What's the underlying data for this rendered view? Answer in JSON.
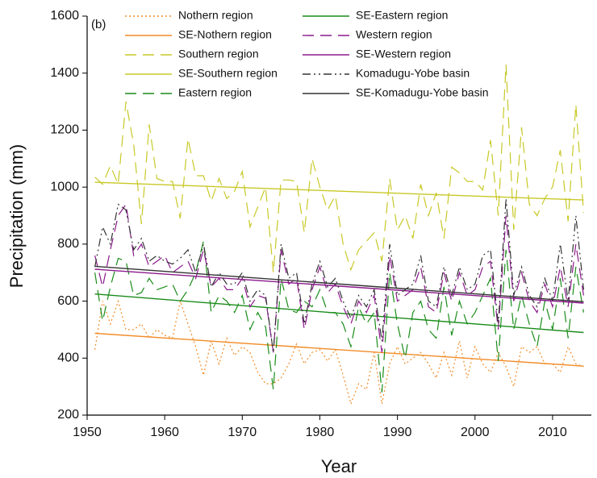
{
  "chart_data": {
    "type": "line",
    "panel_label": "(b)",
    "x_label": "Year",
    "y_label": "Precipitation (mm)",
    "xlim": [
      1950,
      2015
    ],
    "xticks": [
      1950,
      1960,
      1970,
      1980,
      1990,
      2000,
      2010
    ],
    "ylim": [
      200,
      1600
    ],
    "yticks": [
      200,
      400,
      600,
      800,
      1000,
      1200,
      1400,
      1600
    ],
    "x": [
      1951,
      1952,
      1953,
      1954,
      1955,
      1956,
      1957,
      1958,
      1959,
      1960,
      1961,
      1962,
      1963,
      1964,
      1965,
      1966,
      1967,
      1968,
      1969,
      1970,
      1971,
      1972,
      1973,
      1974,
      1975,
      1976,
      1977,
      1978,
      1979,
      1980,
      1981,
      1982,
      1983,
      1984,
      1985,
      1986,
      1987,
      1988,
      1989,
      1990,
      1991,
      1992,
      1993,
      1994,
      1995,
      1996,
      1997,
      1998,
      1999,
      2000,
      2001,
      2002,
      2003,
      2004,
      2005,
      2006,
      2007,
      2008,
      2009,
      2010,
      2011,
      2012,
      2013,
      2014
    ],
    "series": [
      {
        "name": "Nothern region",
        "color": "#f28c28",
        "dash": "dotted",
        "values": [
          430,
          600,
          520,
          600,
          500,
          500,
          520,
          470,
          500,
          480,
          470,
          600,
          520,
          440,
          340,
          460,
          380,
          470,
          410,
          440,
          420,
          350,
          310,
          310,
          330,
          380,
          450,
          380,
          420,
          430,
          390,
          430,
          340,
          240,
          310,
          290,
          420,
          240,
          380,
          440,
          380,
          400,
          420,
          380,
          330,
          420,
          340,
          460,
          330,
          440,
          380,
          350,
          420,
          370,
          300,
          440,
          420,
          440,
          380,
          380,
          350,
          440,
          380,
          370
        ]
      },
      {
        "name": "SE-Nothern region",
        "color": "#f28c28",
        "dash": "solid",
        "x": [
          1951,
          2014
        ],
        "values": [
          487,
          372
        ]
      },
      {
        "name": "Southern region",
        "color": "#c8c828",
        "dash": "dashed",
        "values": [
          1035,
          1010,
          1075,
          1010,
          1300,
          1150,
          870,
          1220,
          1030,
          1020,
          1020,
          890,
          1170,
          1040,
          1040,
          950,
          1030,
          960,
          985,
          1055,
          860,
          930,
          1000,
          700,
          1025,
          1025,
          1020,
          840,
          1100,
          1000,
          920,
          970,
          800,
          710,
          780,
          810,
          840,
          740,
          1030,
          850,
          900,
          820,
          1010,
          900,
          980,
          820,
          1070,
          1050,
          1020,
          1020,
          990,
          1165,
          900,
          1430,
          850,
          1210,
          940,
          900,
          960,
          1000,
          1130,
          880,
          1290,
          910
        ]
      },
      {
        "name": "SE-Southern region",
        "color": "#c8c828",
        "dash": "solid",
        "x": [
          1951,
          2014
        ],
        "values": [
          1017,
          955
        ]
      },
      {
        "name": "Eastern region",
        "color": "#1a8c1a",
        "dash": "dashed",
        "values": [
          700,
          530,
          650,
          750,
          740,
          620,
          630,
          680,
          640,
          650,
          660,
          600,
          640,
          700,
          810,
          560,
          620,
          600,
          560,
          620,
          500,
          560,
          510,
          290,
          680,
          570,
          560,
          600,
          580,
          640,
          560,
          560,
          520,
          440,
          580,
          520,
          560,
          280,
          700,
          520,
          400,
          560,
          600,
          500,
          470,
          650,
          480,
          600,
          520,
          560,
          620,
          680,
          390,
          780,
          500,
          620,
          520,
          440,
          600,
          500,
          680,
          470,
          720,
          560
        ]
      },
      {
        "name": "SE-Eastern region",
        "color": "#1a8c1a",
        "dash": "solid",
        "x": [
          1951,
          2014
        ],
        "values": [
          625,
          490
        ]
      },
      {
        "name": "Western region",
        "color": "#8b1a8b",
        "dash": "dashed",
        "values": [
          760,
          650,
          780,
          900,
          940,
          760,
          800,
          720,
          740,
          760,
          700,
          720,
          740,
          680,
          780,
          650,
          680,
          640,
          640,
          680,
          580,
          620,
          610,
          420,
          780,
          660,
          680,
          500,
          640,
          720,
          630,
          660,
          580,
          520,
          600,
          560,
          620,
          420,
          760,
          600,
          620,
          640,
          720,
          580,
          560,
          700,
          600,
          700,
          620,
          640,
          720,
          740,
          500,
          900,
          600,
          700,
          600,
          560,
          660,
          580,
          720,
          580,
          800,
          620
        ]
      },
      {
        "name": "SE-Western region",
        "color": "#8b1a8b",
        "dash": "solid",
        "x": [
          1951,
          2014
        ],
        "values": [
          712,
          593
        ]
      },
      {
        "name": "Komadugu-Yobe basin",
        "color": "#333333",
        "dash": "dashdot",
        "values": [
          720,
          860,
          800,
          940,
          920,
          780,
          820,
          740,
          760,
          740,
          730,
          750,
          780,
          700,
          800,
          650,
          700,
          660,
          660,
          700,
          600,
          640,
          620,
          420,
          800,
          680,
          700,
          520,
          660,
          740,
          650,
          680,
          600,
          540,
          620,
          580,
          640,
          460,
          800,
          620,
          640,
          660,
          760,
          600,
          580,
          720,
          620,
          720,
          640,
          660,
          760,
          780,
          520,
          960,
          620,
          720,
          620,
          580,
          680,
          600,
          800,
          600,
          900,
          640
        ]
      },
      {
        "name": "SE-Komadugu-Yobe basin",
        "color": "#333333",
        "dash": "solid",
        "x": [
          1951,
          2014
        ],
        "values": [
          722,
          598
        ]
      }
    ]
  }
}
